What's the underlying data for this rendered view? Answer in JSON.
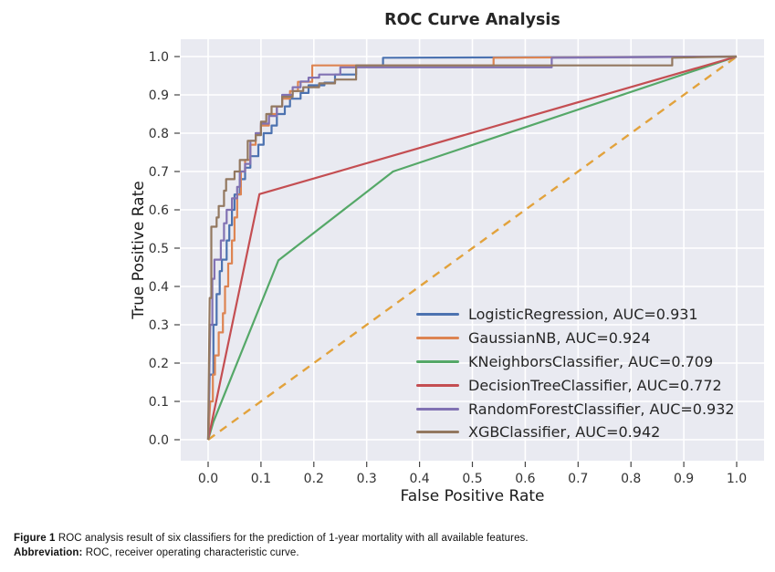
{
  "chart_data": {
    "type": "line",
    "title": "ROC Curve Analysis",
    "xlabel": "False Positive Rate",
    "ylabel": "True Positive Rate",
    "xlim": [
      0.0,
      1.0
    ],
    "ylim": [
      0.0,
      1.0
    ],
    "xticks": [
      0.0,
      0.1,
      0.2,
      0.3,
      0.4,
      0.5,
      0.6,
      0.7,
      0.8,
      0.9,
      1.0
    ],
    "yticks": [
      0.0,
      0.1,
      0.2,
      0.3,
      0.4,
      0.5,
      0.6,
      0.7,
      0.8,
      0.9,
      1.0
    ],
    "grid": true,
    "legend_position": "lower-right",
    "plot_background": "#e9eaf1",
    "grid_color": "#ffffff",
    "tick_color": "#444444",
    "series": [
      {
        "name": "chance-line",
        "label": "",
        "legend": false,
        "color": "#e2a23c",
        "dashed": true,
        "auc": null,
        "points": [
          [
            0,
            0
          ],
          [
            1,
            1
          ]
        ]
      },
      {
        "name": "LogisticRegression",
        "label": "LogisticRegression, AUC=0.931",
        "legend": true,
        "color": "#4c72b0",
        "dashed": false,
        "auc": 0.931,
        "points": [
          [
            0,
            0
          ],
          [
            0.003,
            0.17
          ],
          [
            0.01,
            0.17
          ],
          [
            0.01,
            0.3
          ],
          [
            0.016,
            0.3
          ],
          [
            0.016,
            0.38
          ],
          [
            0.022,
            0.38
          ],
          [
            0.022,
            0.44
          ],
          [
            0.026,
            0.44
          ],
          [
            0.026,
            0.47
          ],
          [
            0.035,
            0.47
          ],
          [
            0.035,
            0.52
          ],
          [
            0.04,
            0.52
          ],
          [
            0.04,
            0.56
          ],
          [
            0.045,
            0.56
          ],
          [
            0.045,
            0.6
          ],
          [
            0.05,
            0.6
          ],
          [
            0.05,
            0.64
          ],
          [
            0.06,
            0.64
          ],
          [
            0.06,
            0.68
          ],
          [
            0.07,
            0.68
          ],
          [
            0.07,
            0.71
          ],
          [
            0.08,
            0.71
          ],
          [
            0.08,
            0.74
          ],
          [
            0.095,
            0.74
          ],
          [
            0.095,
            0.77
          ],
          [
            0.105,
            0.77
          ],
          [
            0.105,
            0.8
          ],
          [
            0.12,
            0.8
          ],
          [
            0.12,
            0.82
          ],
          [
            0.13,
            0.82
          ],
          [
            0.13,
            0.85
          ],
          [
            0.145,
            0.85
          ],
          [
            0.145,
            0.87
          ],
          [
            0.155,
            0.87
          ],
          [
            0.155,
            0.89
          ],
          [
            0.175,
            0.89
          ],
          [
            0.175,
            0.905
          ],
          [
            0.19,
            0.905
          ],
          [
            0.19,
            0.925
          ],
          [
            0.22,
            0.925
          ],
          [
            0.22,
            0.932
          ],
          [
            0.24,
            0.932
          ],
          [
            0.24,
            0.953
          ],
          [
            0.28,
            0.953
          ],
          [
            0.28,
            0.977
          ],
          [
            0.331,
            0.977
          ],
          [
            0.331,
            0.997
          ],
          [
            1,
            1
          ]
        ]
      },
      {
        "name": "GaussianNB",
        "label": "GaussianNB, AUC=0.924",
        "legend": true,
        "color": "#dd8452",
        "dashed": false,
        "auc": 0.924,
        "points": [
          [
            0,
            0
          ],
          [
            0.004,
            0.1
          ],
          [
            0.009,
            0.1
          ],
          [
            0.009,
            0.17
          ],
          [
            0.013,
            0.17
          ],
          [
            0.013,
            0.22
          ],
          [
            0.02,
            0.22
          ],
          [
            0.02,
            0.28
          ],
          [
            0.028,
            0.28
          ],
          [
            0.028,
            0.33
          ],
          [
            0.032,
            0.33
          ],
          [
            0.032,
            0.4
          ],
          [
            0.038,
            0.4
          ],
          [
            0.038,
            0.46
          ],
          [
            0.045,
            0.46
          ],
          [
            0.045,
            0.52
          ],
          [
            0.05,
            0.52
          ],
          [
            0.05,
            0.58
          ],
          [
            0.055,
            0.58
          ],
          [
            0.055,
            0.64
          ],
          [
            0.062,
            0.64
          ],
          [
            0.062,
            0.7
          ],
          [
            0.07,
            0.7
          ],
          [
            0.07,
            0.73
          ],
          [
            0.08,
            0.73
          ],
          [
            0.08,
            0.77
          ],
          [
            0.09,
            0.77
          ],
          [
            0.09,
            0.8
          ],
          [
            0.1,
            0.8
          ],
          [
            0.1,
            0.82
          ],
          [
            0.115,
            0.82
          ],
          [
            0.115,
            0.85
          ],
          [
            0.13,
            0.85
          ],
          [
            0.13,
            0.87
          ],
          [
            0.14,
            0.87
          ],
          [
            0.14,
            0.89
          ],
          [
            0.155,
            0.89
          ],
          [
            0.155,
            0.91
          ],
          [
            0.17,
            0.91
          ],
          [
            0.17,
            0.934
          ],
          [
            0.197,
            0.934
          ],
          [
            0.197,
            0.977
          ],
          [
            0.54,
            0.977
          ],
          [
            0.54,
            0.997
          ],
          [
            1,
            1
          ]
        ]
      },
      {
        "name": "KNeighborsClassifier",
        "label": "KNeighborsClassifier, AUC=0.709",
        "legend": true,
        "color": "#55a868",
        "dashed": false,
        "auc": 0.709,
        "points": [
          [
            0,
            0
          ],
          [
            0.01,
            0.047
          ],
          [
            0.133,
            0.468
          ],
          [
            0.35,
            0.7
          ],
          [
            1,
            1
          ]
        ]
      },
      {
        "name": "DecisionTreeClassifier",
        "label": "DecisionTreeClassifier, AUC=0.772",
        "legend": true,
        "color": "#c44e52",
        "dashed": false,
        "auc": 0.772,
        "points": [
          [
            0,
            0
          ],
          [
            0.097,
            0.641
          ],
          [
            1,
            1
          ]
        ]
      },
      {
        "name": "RandomForestClassifier",
        "label": "RandomForestClassifier, AUC=0.932",
        "legend": true,
        "color": "#8172b3",
        "dashed": false,
        "auc": 0.932,
        "points": [
          [
            0,
            0
          ],
          [
            0.004,
            0.3
          ],
          [
            0.008,
            0.3
          ],
          [
            0.008,
            0.42
          ],
          [
            0.012,
            0.42
          ],
          [
            0.012,
            0.47
          ],
          [
            0.024,
            0.47
          ],
          [
            0.024,
            0.52
          ],
          [
            0.03,
            0.52
          ],
          [
            0.03,
            0.565
          ],
          [
            0.035,
            0.565
          ],
          [
            0.035,
            0.6
          ],
          [
            0.045,
            0.6
          ],
          [
            0.045,
            0.63
          ],
          [
            0.055,
            0.63
          ],
          [
            0.055,
            0.66
          ],
          [
            0.06,
            0.66
          ],
          [
            0.06,
            0.7
          ],
          [
            0.07,
            0.7
          ],
          [
            0.07,
            0.72
          ],
          [
            0.08,
            0.72
          ],
          [
            0.08,
            0.78
          ],
          [
            0.09,
            0.78
          ],
          [
            0.09,
            0.8
          ],
          [
            0.1,
            0.8
          ],
          [
            0.1,
            0.825
          ],
          [
            0.115,
            0.825
          ],
          [
            0.115,
            0.845
          ],
          [
            0.13,
            0.845
          ],
          [
            0.13,
            0.87
          ],
          [
            0.14,
            0.87
          ],
          [
            0.14,
            0.9
          ],
          [
            0.16,
            0.9
          ],
          [
            0.16,
            0.92
          ],
          [
            0.175,
            0.92
          ],
          [
            0.175,
            0.935
          ],
          [
            0.19,
            0.935
          ],
          [
            0.19,
            0.945
          ],
          [
            0.21,
            0.945
          ],
          [
            0.21,
            0.953
          ],
          [
            0.25,
            0.953
          ],
          [
            0.25,
            0.972
          ],
          [
            0.65,
            0.972
          ],
          [
            0.65,
            0.997
          ],
          [
            1,
            1
          ]
        ]
      },
      {
        "name": "XGBClassifier",
        "label": "XGBClassifier, AUC=0.942",
        "legend": true,
        "color": "#937860",
        "dashed": false,
        "auc": 0.942,
        "points": [
          [
            0,
            0
          ],
          [
            0.003,
            0.37
          ],
          [
            0.006,
            0.37
          ],
          [
            0.006,
            0.556
          ],
          [
            0.016,
            0.556
          ],
          [
            0.016,
            0.58
          ],
          [
            0.02,
            0.58
          ],
          [
            0.02,
            0.61
          ],
          [
            0.03,
            0.61
          ],
          [
            0.03,
            0.65
          ],
          [
            0.034,
            0.65
          ],
          [
            0.034,
            0.68
          ],
          [
            0.05,
            0.68
          ],
          [
            0.05,
            0.7
          ],
          [
            0.06,
            0.7
          ],
          [
            0.06,
            0.73
          ],
          [
            0.075,
            0.73
          ],
          [
            0.075,
            0.78
          ],
          [
            0.09,
            0.78
          ],
          [
            0.09,
            0.795
          ],
          [
            0.1,
            0.795
          ],
          [
            0.1,
            0.83
          ],
          [
            0.11,
            0.83
          ],
          [
            0.11,
            0.85
          ],
          [
            0.12,
            0.85
          ],
          [
            0.12,
            0.87
          ],
          [
            0.14,
            0.87
          ],
          [
            0.14,
            0.895
          ],
          [
            0.16,
            0.895
          ],
          [
            0.16,
            0.91
          ],
          [
            0.18,
            0.91
          ],
          [
            0.18,
            0.92
          ],
          [
            0.21,
            0.92
          ],
          [
            0.21,
            0.93
          ],
          [
            0.24,
            0.93
          ],
          [
            0.24,
            0.94
          ],
          [
            0.28,
            0.94
          ],
          [
            0.28,
            0.977
          ],
          [
            0.878,
            0.977
          ],
          [
            0.878,
            0.997
          ],
          [
            1,
            1
          ]
        ]
      }
    ]
  },
  "caption": {
    "line1_bold": "Figure 1",
    "line1_rest": " ROC analysis result of six classifiers for the prediction of 1-year mortality with all available features.",
    "line2_bold": "Abbreviation:",
    "line2_rest": " ROC, receiver operating characteristic curve."
  }
}
